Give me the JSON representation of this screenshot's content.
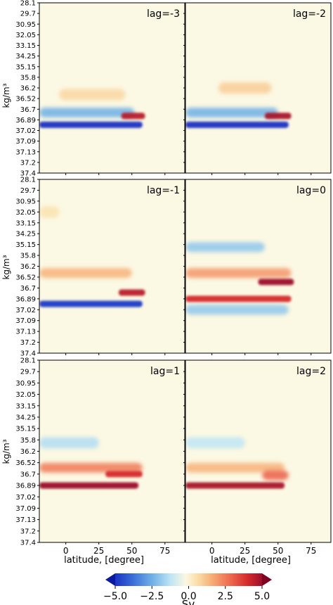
{
  "chart_data": {
    "type": "heatmap",
    "panels": [
      {
        "title": "lag=-3"
      },
      {
        "title": "lag=-2"
      },
      {
        "title": "lag=-1"
      },
      {
        "title": "lag=0"
      },
      {
        "title": "lag=1"
      },
      {
        "title": "lag=2"
      }
    ],
    "ylabel": "kg/m³",
    "xlabel": "latitude, [degree]",
    "y_ticks": [
      "28.1",
      "29.7",
      "30.95",
      "32.05",
      "33.15",
      "34.25",
      "35.15",
      "35.8",
      "36.2",
      "36.52",
      "36.7",
      "36.89",
      "37.02",
      "37.09",
      "37.13",
      "37.2",
      "37.4"
    ],
    "x_ticks": [
      "0",
      "25",
      "50",
      "75"
    ],
    "xlim": [
      -20,
      90
    ],
    "colorbar": {
      "label": "Sv",
      "range": [
        -5.0,
        5.0
      ],
      "ticks": [
        "−5.0",
        "−2.5",
        "0.0",
        "2.5",
        "5.0"
      ],
      "colormap": "RdYlBu_r",
      "extend": "both"
    },
    "features": [
      [
        {
          "name": "deep blue band",
          "y": 36.95,
          "x": [
            -20,
            58
          ],
          "value": -5.0
        },
        {
          "name": "light blue band",
          "y": 36.76,
          "x": [
            -20,
            52
          ],
          "value": -2.0
        },
        {
          "name": "red core",
          "y": 36.82,
          "x": [
            42,
            60
          ],
          "value": 4.5
        },
        {
          "name": "weak positive",
          "y": 36.4,
          "x": [
            -5,
            45
          ],
          "value": 0.8
        }
      ],
      [
        {
          "name": "deep blue band",
          "y": 36.95,
          "x": [
            -20,
            58
          ],
          "value": -5.0
        },
        {
          "name": "light blue band",
          "y": 36.76,
          "x": [
            -20,
            50
          ],
          "value": -2.0
        },
        {
          "name": "red core",
          "y": 36.82,
          "x": [
            40,
            60
          ],
          "value": 4.8
        },
        {
          "name": "weak positive",
          "y": 36.2,
          "x": [
            5,
            45
          ],
          "value": 1.0
        }
      ],
      [
        {
          "name": "deep blue band",
          "y": 36.95,
          "x": [
            -20,
            58
          ],
          "value": -4.8
        },
        {
          "name": "positive lobe",
          "y": 36.4,
          "x": [
            -20,
            50
          ],
          "value": 1.5
        },
        {
          "name": "red core",
          "y": 36.78,
          "x": [
            40,
            60
          ],
          "value": 4.5
        },
        {
          "name": "weak positive",
          "y": 32.05,
          "x": [
            -20,
            -5
          ],
          "value": 0.6
        }
      ],
      [
        {
          "name": "negative band",
          "y": 35.3,
          "x": [
            -20,
            40
          ],
          "value": -1.5
        },
        {
          "name": "positive lobe",
          "y": 36.4,
          "x": [
            -20,
            60
          ],
          "value": 2.0
        },
        {
          "name": "red core",
          "y": 36.6,
          "x": [
            35,
            62
          ],
          "value": 5.0
        },
        {
          "name": "red band",
          "y": 36.89,
          "x": [
            -20,
            60
          ],
          "value": 4.0
        },
        {
          "name": "blue band",
          "y": 37.02,
          "x": [
            -20,
            58
          ],
          "value": -1.5
        }
      ],
      [
        {
          "name": "negative band",
          "y": 35.9,
          "x": [
            -20,
            25
          ],
          "value": -1.0
        },
        {
          "name": "positive lobe",
          "y": 36.6,
          "x": [
            -20,
            58
          ],
          "value": 2.5
        },
        {
          "name": "red core",
          "y": 36.7,
          "x": [
            30,
            58
          ],
          "value": 4.0
        },
        {
          "name": "red band",
          "y": 36.89,
          "x": [
            -20,
            55
          ],
          "value": 5.0
        }
      ],
      [
        {
          "name": "negative band",
          "y": 35.9,
          "x": [
            -20,
            25
          ],
          "value": -0.8
        },
        {
          "name": "positive lobe",
          "y": 36.6,
          "x": [
            -20,
            55
          ],
          "value": 1.5
        },
        {
          "name": "red core",
          "y": 36.72,
          "x": [
            38,
            58
          ],
          "value": 3.0
        },
        {
          "name": "red band",
          "y": 36.89,
          "x": [
            -20,
            55
          ],
          "value": 4.8
        }
      ]
    ]
  }
}
